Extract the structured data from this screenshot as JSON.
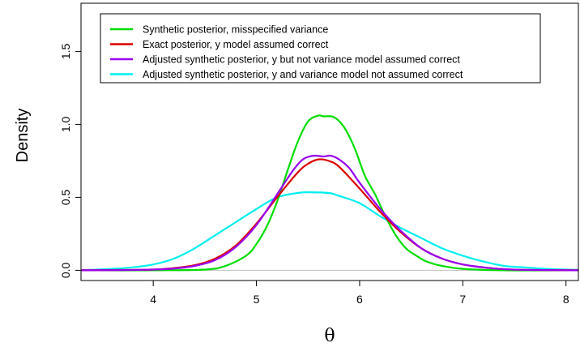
{
  "chart_data": {
    "type": "line",
    "xlabel": "θ",
    "ylabel": "Density",
    "xlim": [
      3.3,
      8.12
    ],
    "ylim": [
      -0.07,
      1.83
    ],
    "x_ticks": [
      4,
      5,
      6,
      7,
      8
    ],
    "y_ticks": [
      0.0,
      0.5,
      1.0,
      1.5
    ],
    "x_tick_labels": [
      "4",
      "5",
      "6",
      "7",
      "8"
    ],
    "y_tick_labels": [
      "0.0",
      "0.5",
      "1.0",
      "1.5"
    ],
    "grid": false,
    "legend_position": "top",
    "baseline_color": "#bebebe",
    "series": [
      {
        "name": "Synthetic posterior, misspecified variance",
        "color": "#00dd00",
        "x": [
          3.3,
          4.0,
          4.5,
          4.7,
          4.9,
          5.0,
          5.1,
          5.2,
          5.3,
          5.4,
          5.5,
          5.6,
          5.65,
          5.75,
          5.85,
          5.95,
          6.05,
          6.15,
          6.25,
          6.35,
          6.45,
          6.55,
          6.65,
          6.8,
          7.0,
          7.4,
          8.12
        ],
        "y": [
          0.0,
          0.0,
          0.005,
          0.03,
          0.1,
          0.18,
          0.3,
          0.47,
          0.68,
          0.88,
          1.02,
          1.06,
          1.055,
          1.05,
          0.98,
          0.84,
          0.65,
          0.52,
          0.37,
          0.24,
          0.15,
          0.1,
          0.06,
          0.03,
          0.01,
          0.0,
          0.0
        ]
      },
      {
        "name": "Exact posterior, y model assumed correct",
        "color": "#dd0000",
        "x": [
          3.3,
          3.8,
          4.0,
          4.2,
          4.4,
          4.6,
          4.8,
          5.0,
          5.2,
          5.4,
          5.5,
          5.6,
          5.7,
          5.8,
          6.0,
          6.2,
          6.4,
          6.6,
          6.8,
          7.0,
          7.2,
          7.4,
          7.6,
          8.12
        ],
        "y": [
          0.0,
          0.003,
          0.005,
          0.015,
          0.035,
          0.08,
          0.17,
          0.32,
          0.5,
          0.67,
          0.73,
          0.76,
          0.75,
          0.71,
          0.56,
          0.4,
          0.26,
          0.15,
          0.08,
          0.04,
          0.02,
          0.008,
          0.003,
          0.0
        ]
      },
      {
        "name": "Adjusted synthetic posterior, y but not variance model assumed correct",
        "color": "#9900ee",
        "x": [
          3.3,
          3.8,
          4.0,
          4.2,
          4.4,
          4.6,
          4.8,
          5.0,
          5.2,
          5.35,
          5.45,
          5.55,
          5.65,
          5.72,
          5.8,
          5.9,
          6.0,
          6.2,
          6.4,
          6.6,
          6.8,
          7.0,
          7.2,
          7.4,
          7.6,
          8.12
        ],
        "y": [
          0.0,
          0.002,
          0.005,
          0.012,
          0.03,
          0.07,
          0.16,
          0.31,
          0.52,
          0.68,
          0.76,
          0.785,
          0.78,
          0.785,
          0.76,
          0.7,
          0.6,
          0.42,
          0.27,
          0.15,
          0.08,
          0.04,
          0.02,
          0.008,
          0.003,
          0.0
        ]
      },
      {
        "name": "Adjusted synthetic posterior, y and variance model not assumed correct",
        "color": "#00eeee",
        "x": [
          3.3,
          3.6,
          3.8,
          4.0,
          4.2,
          4.4,
          4.6,
          4.8,
          5.0,
          5.2,
          5.4,
          5.5,
          5.7,
          5.8,
          6.0,
          6.2,
          6.4,
          6.6,
          6.8,
          7.0,
          7.2,
          7.4,
          7.6,
          7.8,
          8.0,
          8.12
        ],
        "y": [
          0.0,
          0.01,
          0.02,
          0.04,
          0.08,
          0.15,
          0.24,
          0.33,
          0.42,
          0.5,
          0.53,
          0.535,
          0.53,
          0.51,
          0.46,
          0.37,
          0.29,
          0.22,
          0.15,
          0.1,
          0.06,
          0.03,
          0.02,
          0.01,
          0.005,
          0.003
        ]
      }
    ]
  }
}
